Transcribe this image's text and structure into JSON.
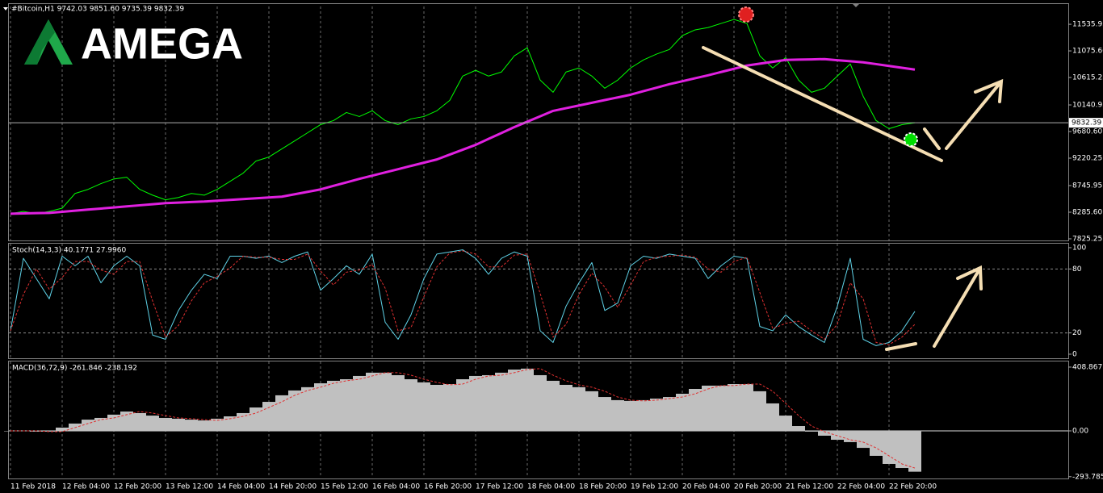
{
  "logo": "AMEGA",
  "chart_data": [
    {
      "type": "line",
      "title": "#Bitcoin,H1  9742.03 9851.60 9735.39 9832.39",
      "ylim": [
        7797,
        11858
      ],
      "yticks": [
        11535.95,
        {
          "value": 11075.6,
          "label": "11075.60"
        },
        10615.25,
        10140.95,
        {
          "value": 9680.6,
          "label": "9680.60"
        },
        9220.25,
        8745.95,
        {
          "value": 8285.6,
          "label": "8285.60"
        },
        7825.25
      ],
      "current_price": 9832.39,
      "series": [
        {
          "color": "#00ff00",
          "values": [
            8260,
            8300,
            8260,
            8300,
            8355,
            8610,
            8680,
            8780,
            8860,
            8890,
            8680,
            8580,
            8500,
            8540,
            8610,
            8580,
            8680,
            8820,
            8960,
            9170,
            9240,
            9380,
            9520,
            9660,
            9800,
            9870,
            10010,
            9940,
            10040,
            9870,
            9800,
            9900,
            9940,
            10040,
            10220,
            10640,
            10740,
            10640,
            10710,
            10990,
            11130,
            10570,
            10360,
            10710,
            10780,
            10640,
            10430,
            10570,
            10780,
            10920,
            11020,
            11100,
            11340,
            11440,
            11480,
            11550,
            11620,
            11550,
            10990,
            10780,
            10960,
            10570,
            10360,
            10430,
            10640,
            10850,
            10290,
            9870,
            9730,
            9800,
            9832.39
          ]
        },
        {
          "color": "#e020e0",
          "style": "thick",
          "values": [
            8260,
            8265,
            8270,
            8274,
            8293,
            8311,
            8330,
            8349,
            8367,
            8386,
            8405,
            8423,
            8442,
            8451,
            8461,
            8470,
            8484,
            8498,
            8512,
            8526,
            8540,
            8554,
            8596,
            8638,
            8680,
            8741,
            8801,
            8862,
            8918,
            8974,
            9030,
            9086,
            9142,
            9198,
            9282,
            9366,
            9450,
            9553,
            9655,
            9758,
            9851,
            9945,
            10038,
            10085,
            10131,
            10178,
            10225,
            10271,
            10318,
            10379,
            10439,
            10500,
            10551,
            10603,
            10654,
            10710,
            10766,
            10822,
            10855,
            10887,
            10920,
            10925,
            10929,
            10934,
            10915,
            10897,
            10878,
            10847,
            10815,
            10784,
            10752
          ]
        }
      ]
    },
    {
      "type": "line",
      "title": "Stoch(14,3,3) 40.1771 27.9960",
      "ylim": [
        -3.8,
        104.5
      ],
      "yticks": [
        100,
        80,
        20,
        0
      ],
      "level_lines": [
        80,
        20
      ],
      "series": [
        {
          "color": "#5fd3e8",
          "values": [
            22,
            90,
            71,
            52,
            92,
            83,
            92,
            67,
            83,
            92,
            83,
            18,
            14,
            41,
            60,
            75,
            71,
            92,
            92,
            90,
            92,
            86,
            92,
            96,
            60,
            71,
            83,
            75,
            94,
            30,
            14,
            37,
            71,
            94,
            96,
            98,
            90,
            75,
            90,
            96,
            92,
            22,
            11,
            45,
            67,
            86,
            41,
            48,
            83,
            92,
            90,
            94,
            92,
            90,
            71,
            83,
            92,
            90,
            26,
            22,
            37,
            26,
            18,
            11,
            45,
            90,
            14,
            8,
            11,
            22,
            40.1771
          ]
        },
        {
          "color": "#e03030",
          "style": "dashed",
          "values": [
            22,
            56,
            80,
            61,
            72,
            87,
            87,
            79,
            75,
            87,
            87,
            50,
            16,
            27,
            50,
            67,
            73,
            81,
            92,
            91,
            91,
            89,
            89,
            94,
            78,
            65,
            77,
            79,
            84,
            62,
            22,
            25,
            54,
            82,
            95,
            97,
            94,
            82,
            82,
            93,
            94,
            57,
            16,
            28,
            56,
            76,
            63,
            44,
            65,
            87,
            91,
            92,
            93,
            91,
            80,
            77,
            87,
            91,
            58,
            24,
            29,
            31,
            22,
            14,
            28,
            67,
            52,
            11,
            9,
            16,
            27.996
          ]
        }
      ]
    },
    {
      "type": "bar",
      "title": "MACD(36,72,9) -261.846 -238.192",
      "ylim": [
        -300,
        450
      ],
      "yticks": [
        408.867,
        {
          "value": 0,
          "label": "0.00"
        },
        -293.785
      ],
      "categories": [
        "11 Feb 2018",
        null,
        null,
        null,
        "12 Feb 04:00",
        null,
        null,
        null,
        "12 Feb 20:00",
        null,
        null,
        null,
        "13 Feb 12:00",
        null,
        null,
        null,
        "14 Feb 04:00",
        null,
        null,
        null,
        "14 Feb 20:00",
        null,
        null,
        null,
        "15 Feb 12:00",
        null,
        null,
        null,
        "16 Feb 04:00",
        null,
        null,
        null,
        "16 Feb 20:00",
        null,
        null,
        null,
        "17 Feb 12:00",
        null,
        null,
        null,
        "18 Feb 04:00",
        null,
        null,
        null,
        "18 Feb 20:00",
        null,
        null,
        null,
        "19 Feb 12:00",
        null,
        null,
        null,
        "20 Feb 04:00",
        null,
        null,
        null,
        "20 Feb 20:00",
        null,
        null,
        null,
        "21 Feb 12:00",
        null,
        null,
        null,
        "22 Feb 04:00",
        null,
        null,
        null,
        "22 Feb 20:00",
        null,
        null
      ],
      "series": [
        {
          "color": "#c0c0c0",
          "values": [
            0,
            0,
            -5,
            -5,
            21,
            47,
            72,
            83,
            104,
            124,
            114,
            98,
            83,
            78,
            72,
            67,
            78,
            93,
            114,
            150,
            186,
            228,
            259,
            280,
            305,
            321,
            331,
            352,
            373,
            373,
            357,
            331,
            311,
            295,
            300,
            331,
            352,
            357,
            373,
            393,
            399,
            357,
            321,
            295,
            280,
            254,
            217,
            197,
            192,
            197,
            207,
            217,
            238,
            269,
            290,
            290,
            300,
            300,
            254,
            176,
            98,
            31,
            -5,
            -31,
            -57,
            -72,
            -109,
            -160,
            -212,
            -238,
            -261.846
          ]
        },
        {
          "type": "line",
          "color": "#e03030",
          "style": "dashed",
          "values": [
            0,
            0,
            0,
            -5,
            -5,
            21,
            47,
            72,
            83,
            104,
            124,
            114,
            98,
            83,
            78,
            72,
            67,
            78,
            93,
            114,
            150,
            186,
            228,
            259,
            280,
            305,
            321,
            331,
            352,
            373,
            373,
            357,
            331,
            311,
            295,
            300,
            331,
            352,
            357,
            373,
            393,
            399,
            357,
            321,
            295,
            280,
            254,
            217,
            197,
            192,
            197,
            207,
            217,
            238,
            269,
            290,
            290,
            300,
            300,
            254,
            176,
            98,
            31,
            -5,
            -31,
            -57,
            -72,
            -109,
            -160,
            -212,
            -238.192
          ]
        }
      ]
    }
  ]
}
